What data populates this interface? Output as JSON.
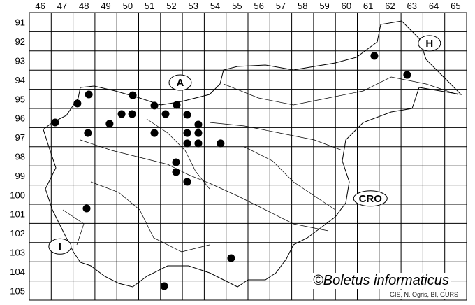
{
  "map": {
    "columns": [
      "46",
      "47",
      "48",
      "49",
      "50",
      "51",
      "52",
      "53",
      "54",
      "55",
      "56",
      "57",
      "58",
      "59",
      "60",
      "61",
      "62",
      "63",
      "64",
      "65"
    ],
    "rows": [
      "91",
      "92",
      "93",
      "94",
      "95",
      "96",
      "97",
      "98",
      "99",
      "100",
      "101",
      "102",
      "103",
      "104",
      "105"
    ],
    "country_labels": [
      {
        "text": "A",
        "col": 52.9,
        "row": 94.65
      },
      {
        "text": "H",
        "col": 64.3,
        "row": 92.6
      },
      {
        "text": "CRO",
        "col": 61.6,
        "row": 100.7
      },
      {
        "text": "I",
        "col": 47.4,
        "row": 103.2
      }
    ],
    "records": [
      [
        48.72,
        95.27
      ],
      [
        48.2,
        95.74
      ],
      [
        50.73,
        95.31
      ],
      [
        51.72,
        95.85
      ],
      [
        52.74,
        95.82
      ],
      [
        47.18,
        96.73
      ],
      [
        50.22,
        96.29
      ],
      [
        50.7,
        96.29
      ],
      [
        52.23,
        96.29
      ],
      [
        53.22,
        96.33
      ],
      [
        49.67,
        96.8
      ],
      [
        53.73,
        96.84
      ],
      [
        48.68,
        97.28
      ],
      [
        51.72,
        97.28
      ],
      [
        53.22,
        97.28
      ],
      [
        53.73,
        97.28
      ],
      [
        53.22,
        97.82
      ],
      [
        53.73,
        97.82
      ],
      [
        54.75,
        97.82
      ],
      [
        52.71,
        98.81
      ],
      [
        52.71,
        99.32
      ],
      [
        53.22,
        99.83
      ],
      [
        48.62,
        101.22
      ],
      [
        61.78,
        93.26
      ],
      [
        63.28,
        94.25
      ],
      [
        55.23,
        103.81
      ],
      [
        52.17,
        105.27
      ]
    ],
    "dot_color": "#000000"
  },
  "copyright": "©Boletus informaticus",
  "source": "GIS, N. Ogris, BI, GURS"
}
